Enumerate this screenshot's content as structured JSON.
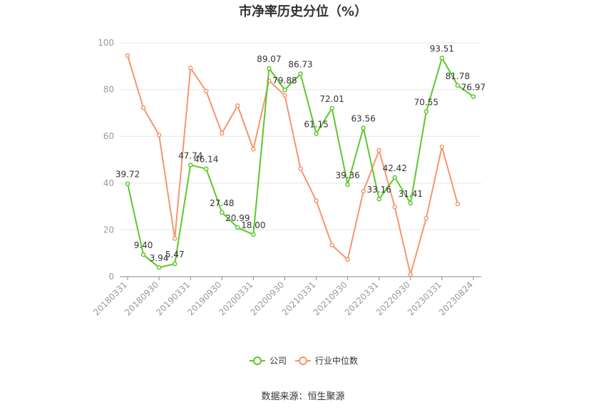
{
  "title": "市净率历史分位（%）",
  "source": "数据来源：恒生聚源",
  "colors": {
    "company": "#5cc82a",
    "industry": "#f7956c",
    "grid": "#e6e6e6",
    "axis": "#888888"
  },
  "chart_data": {
    "type": "line",
    "title": "市净率历史分位（%）",
    "xlabel": "",
    "ylabel": "",
    "ylim": [
      0,
      100
    ],
    "yticks": [
      0,
      20,
      40,
      60,
      80,
      100
    ],
    "grid": true,
    "legend": "bottom",
    "x": [
      "20180331",
      "20180630",
      "20180930",
      "20181231",
      "20190331",
      "20190630",
      "20190930",
      "20191231",
      "20200331",
      "20200630",
      "20200930",
      "20201231",
      "20210331",
      "20210630",
      "20210930",
      "20211231",
      "20220331",
      "20220630",
      "20220930",
      "20221231",
      "20230331",
      "20230630",
      "20230824"
    ],
    "x_tick_labels": [
      "20180331",
      "20180930",
      "20190331",
      "20190930",
      "20200331",
      "20200930",
      "20210331",
      "20210930",
      "20220331",
      "20220930",
      "20230331",
      "20230824"
    ],
    "series": [
      {
        "name": "公司",
        "values": [
          39.72,
          9.4,
          3.94,
          5.47,
          47.74,
          46.14,
          27.48,
          20.99,
          18.0,
          89.07,
          79.88,
          86.73,
          61.15,
          72.01,
          39.36,
          63.56,
          33.16,
          42.42,
          31.41,
          70.55,
          93.51,
          81.78,
          76.97
        ],
        "labels": [
          "39.72",
          "9.40",
          "3.94",
          "5.47",
          "47.74",
          "46.14",
          "27.48",
          "20.99",
          "18.00",
          "89.07",
          "79.88",
          "86.73",
          "61.15",
          "72.01",
          "39.36",
          "63.56",
          "33.16",
          "42.42",
          "31.41",
          "70.55",
          "93.51",
          "81.78",
          "76.97"
        ]
      },
      {
        "name": "行业中位数",
        "values": [
          94.5,
          72.2,
          60.5,
          16.3,
          89.2,
          79.3,
          61.3,
          73.1,
          54.5,
          83.8,
          77.5,
          46.2,
          32.5,
          13.5,
          7.3,
          36.5,
          54.0,
          29.8,
          0.9,
          25.0,
          55.5,
          31.1,
          null
        ]
      }
    ]
  }
}
